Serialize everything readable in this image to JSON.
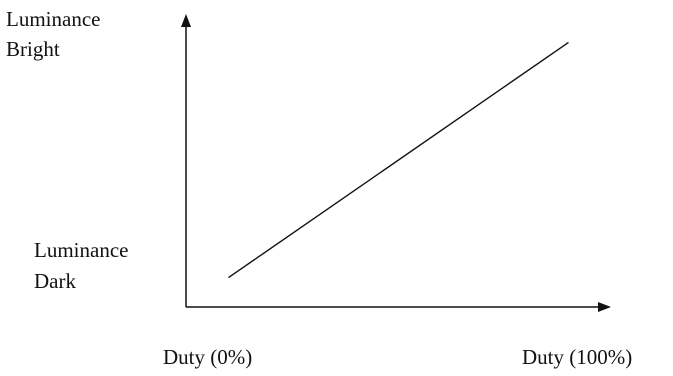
{
  "chart_data": {
    "type": "line",
    "x_axis": {
      "start_label": "Duty (0%)",
      "end_label": "Duty (100%)"
    },
    "y_axis": {
      "top_label_line1": "Luminance",
      "top_label_line2": "Bright",
      "bottom_label_line1": "Luminance",
      "bottom_label_line2": "Dark"
    },
    "xlim": [
      0,
      100
    ],
    "ylim": [
      0,
      100
    ],
    "series": [
      {
        "x": [
          10,
          90
        ],
        "y": [
          10,
          90
        ]
      }
    ],
    "grid": false,
    "colors": {
      "axis": "#111111",
      "line": "#111111"
    }
  }
}
